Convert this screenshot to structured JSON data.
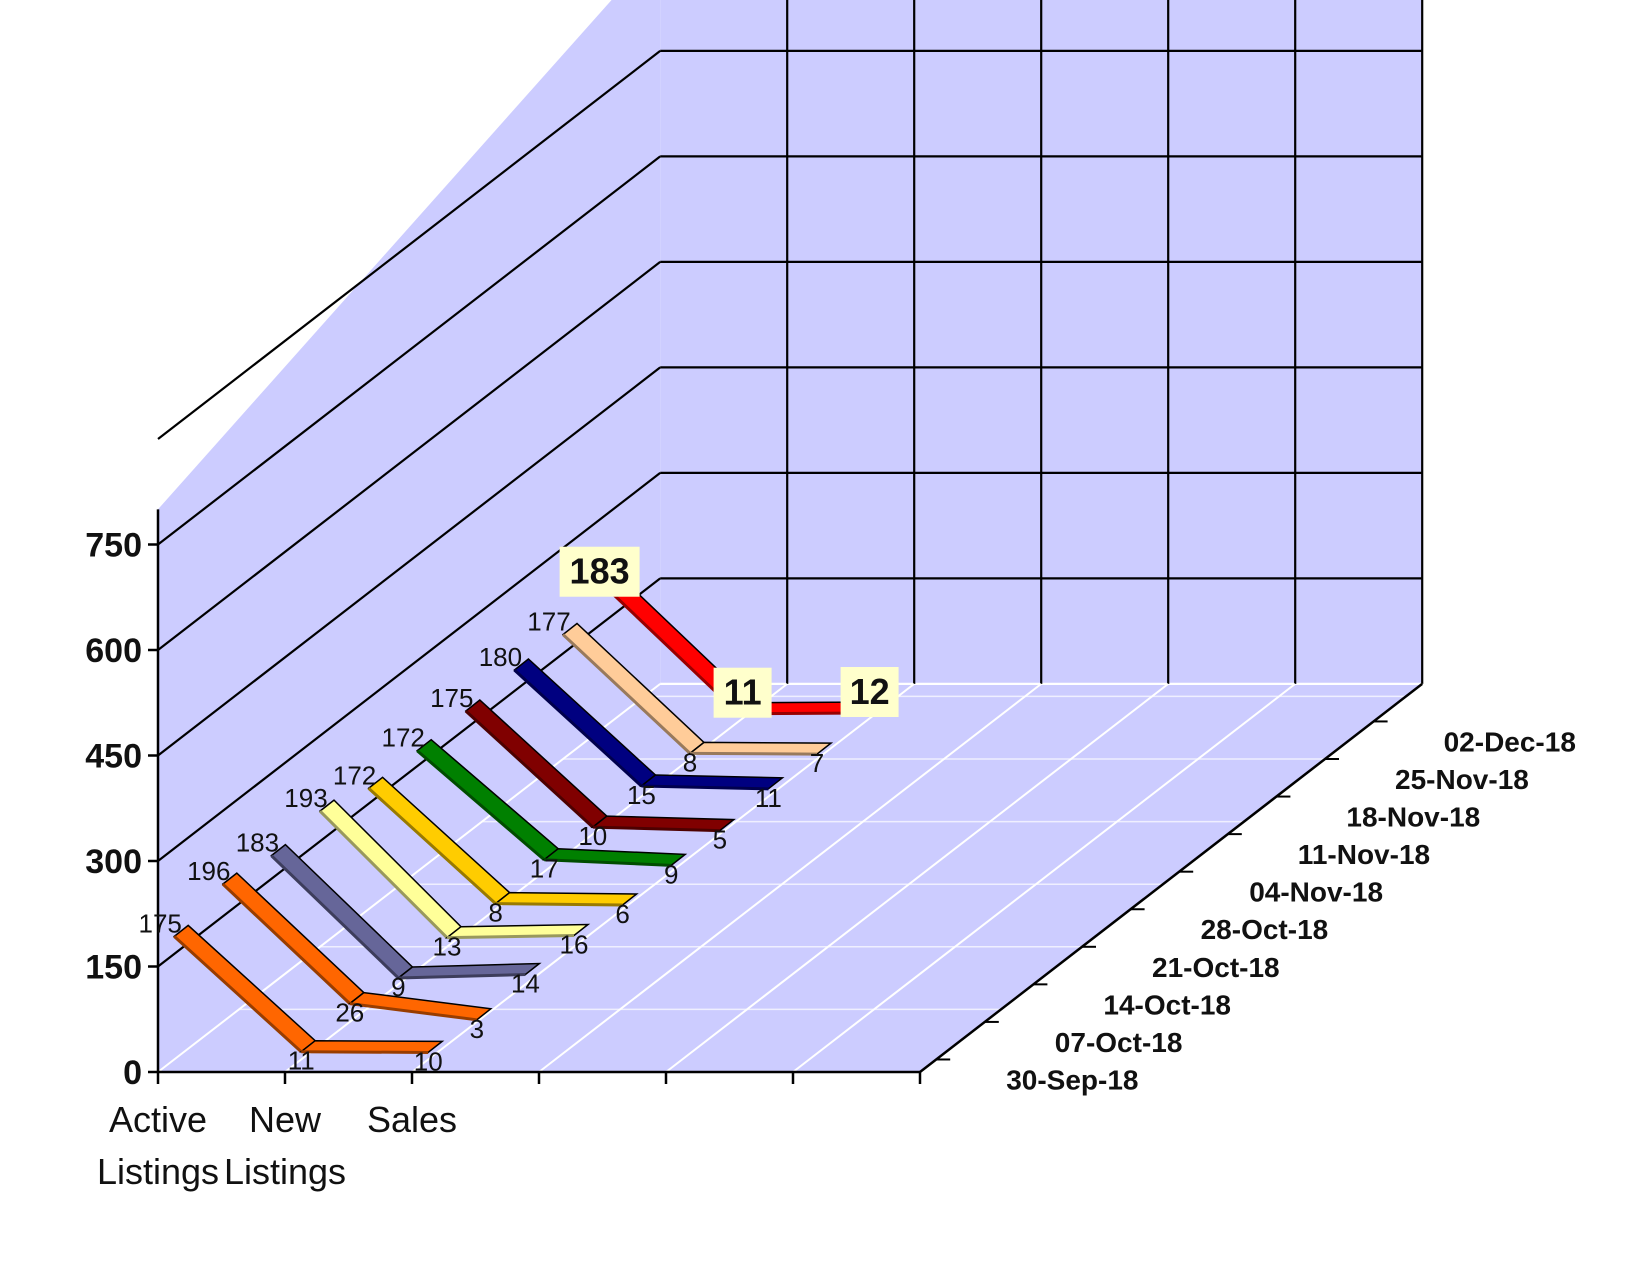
{
  "chart_data": {
    "type": "line",
    "categories": [
      [
        "Active",
        "Listings"
      ],
      [
        "New",
        "Listings"
      ],
      [
        "Sales"
      ]
    ],
    "ylim": [
      0,
      750
    ],
    "yticks": [
      "0",
      "150",
      "300",
      "450",
      "600",
      "750"
    ],
    "depth_labels": [
      "30-Sep-18",
      "07-Oct-18",
      "14-Oct-18",
      "21-Oct-18",
      "28-Oct-18",
      "04-Nov-18",
      "11-Nov-18",
      "18-Nov-18",
      "25-Nov-18",
      "02-Dec-18"
    ],
    "series": [
      {
        "name": "30-Sep-18",
        "values": [
          175,
          11,
          10
        ],
        "color": "#FF6600"
      },
      {
        "name": "07-Oct-18",
        "values": [
          196,
          26,
          3
        ],
        "color": "#FF6600"
      },
      {
        "name": "14-Oct-18",
        "values": [
          183,
          9,
          14
        ],
        "color": "#666699"
      },
      {
        "name": "21-Oct-18",
        "values": [
          193,
          13,
          16
        ],
        "color": "#FFFF99"
      },
      {
        "name": "28-Oct-18",
        "values": [
          172,
          8,
          6
        ],
        "color": "#FFCC00"
      },
      {
        "name": "04-Nov-18",
        "values": [
          172,
          17,
          9
        ],
        "color": "#008000"
      },
      {
        "name": "11-Nov-18",
        "values": [
          175,
          10,
          5
        ],
        "color": "#800000"
      },
      {
        "name": "18-Nov-18",
        "values": [
          180,
          15,
          11
        ],
        "color": "#000080"
      },
      {
        "name": "25-Nov-18",
        "values": [
          177,
          8,
          7
        ],
        "color": "#FFCC99"
      },
      {
        "name": "02-Dec-18",
        "values": [
          183,
          11,
          12
        ],
        "color": "#FF0000"
      }
    ],
    "grid": true,
    "wall_color": "#CCCCFF"
  }
}
